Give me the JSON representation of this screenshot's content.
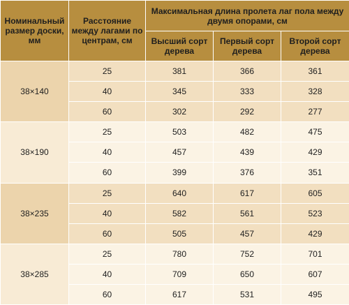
{
  "header": {
    "col_size": "Номинальный размер доски, мм",
    "col_spacing": "Расстояние между лагами по центрам, см",
    "col_max_span": "Максимальная длина пролета лаг пола между двумя опорами, см",
    "col_grade_top": "Высший сорт дерева",
    "col_grade_first": "Первый сорт дерева",
    "col_grade_second": "Второй сорт дерева"
  },
  "groups": [
    {
      "size": "38×140",
      "rows": [
        {
          "spacing": "25",
          "top": "381",
          "first": "366",
          "second": "361"
        },
        {
          "spacing": "40",
          "top": "345",
          "first": "333",
          "second": "328"
        },
        {
          "spacing": "60",
          "top": "302",
          "first": "292",
          "second": "277"
        }
      ]
    },
    {
      "size": "38×190",
      "rows": [
        {
          "spacing": "25",
          "top": "503",
          "first": "482",
          "second": "475"
        },
        {
          "spacing": "40",
          "top": "457",
          "first": "439",
          "second": "429"
        },
        {
          "spacing": "60",
          "top": "399",
          "first": "376",
          "second": "351"
        }
      ]
    },
    {
      "size": "38×235",
      "rows": [
        {
          "spacing": "25",
          "top": "640",
          "first": "617",
          "second": "605"
        },
        {
          "spacing": "40",
          "top": "582",
          "first": "561",
          "second": "523"
        },
        {
          "spacing": "60",
          "top": "505",
          "first": "457",
          "second": "429"
        }
      ]
    },
    {
      "size": "38×285",
      "rows": [
        {
          "spacing": "25",
          "top": "780",
          "first": "752",
          "second": "701"
        },
        {
          "spacing": "40",
          "top": "709",
          "first": "650",
          "second": "607"
        },
        {
          "spacing": "60",
          "top": "617",
          "first": "531",
          "second": "495"
        }
      ]
    }
  ]
}
